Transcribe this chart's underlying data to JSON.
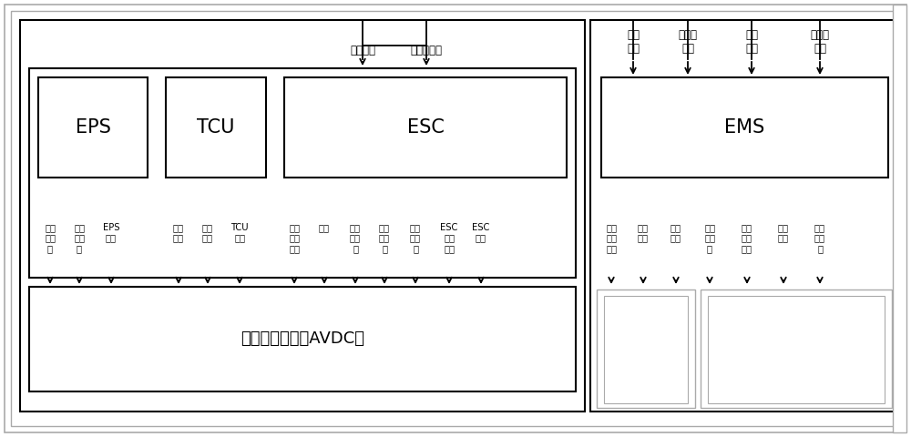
{
  "bg_color": "#ffffff",
  "line_color": "#000000",
  "gray_color": "#aaaaaa",
  "figsize": [
    10.0,
    4.8
  ],
  "dpi": 100,
  "fs_xl": 15,
  "fs_l": 10,
  "fs_m": 8.5,
  "fs_s": 7.2,
  "eps_label": "EPS",
  "tcu_label": "TCU",
  "esc_label": "ESC",
  "ems_label": "EMS",
  "bottom_label": "电子装置（包含AVDC）",
  "top_esc_labels": [
    "减速使能",
    "期望减速度"
  ],
  "top_ems_labels": [
    "快扣\n使能",
    "快扣期\n望值",
    "慢扣\n使能",
    "慢扣期\n望值"
  ],
  "eps_signals": [
    "方向\n盘转\n角",
    "转向\n助力\n矩",
    "EPS\n故障"
  ],
  "tcu_signals": [
    "涡轮\n转速",
    "挡位\n信号",
    "TCU\n故障"
  ],
  "esc_signals": [
    "制动\n主缸\n压力",
    "车速",
    "纵向\n加速\n度",
    "侧向\n加速\n度",
    "横摆\n角速\n度",
    "ESC\n工作\n标志",
    "ESC\n故障"
  ],
  "ems_signals": [
    "油门\n踏板\n位置",
    "指示\n扭矩",
    "摩擦\n扭矩",
    "发动\n机转\n速",
    "最大\n可调\n扭矩",
    "制动\n状态",
    "发动\n机故\n障"
  ]
}
